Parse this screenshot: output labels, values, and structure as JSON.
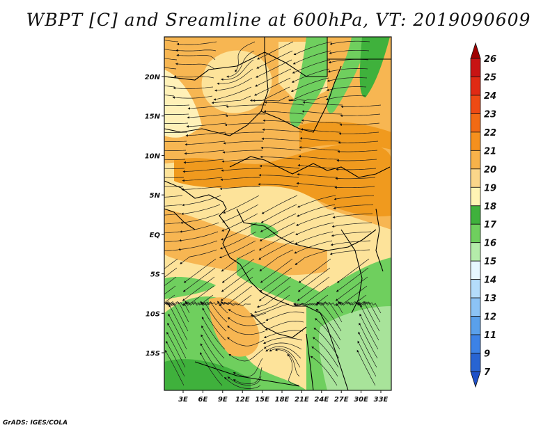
{
  "title": "WBPT [C] and Sreamline at 600hPa, VT: 2019090609",
  "credit": "GrADS: IGES/COLA",
  "map": {
    "lat_labels": [
      "20N",
      "15N",
      "10N",
      "5N",
      "EQ",
      "5S",
      "10S",
      "15S"
    ],
    "lon_labels": [
      "3E",
      "6E",
      "9E",
      "12E",
      "15E",
      "18E",
      "21E",
      "24E",
      "27E",
      "30E",
      "33E"
    ],
    "field_colors": {
      "orange_dark": "#f09a1e",
      "orange": "#f7b652",
      "yellow": "#fde39a",
      "yellow_light": "#fff1b8",
      "green": "#6fcf5e",
      "green_light": "#a8e39a",
      "green_dark": "#3fb13c"
    }
  },
  "colorbar": {
    "levels": [
      "26",
      "25",
      "24",
      "23",
      "22",
      "21",
      "20",
      "19",
      "18",
      "17",
      "16",
      "15",
      "14",
      "13",
      "12",
      "11",
      "9",
      "7"
    ],
    "colors": [
      "#a00000",
      "#c81414",
      "#e02a14",
      "#ee4a14",
      "#f26a14",
      "#f5901e",
      "#f7b24a",
      "#fbd68a",
      "#fff4b4",
      "#3fb13c",
      "#6fcf5e",
      "#b4ecaa",
      "#e6f7ff",
      "#b4dcfa",
      "#8cc3f5",
      "#5aa0eb",
      "#3c82e6",
      "#2864d2",
      "#1e50c8"
    ]
  }
}
